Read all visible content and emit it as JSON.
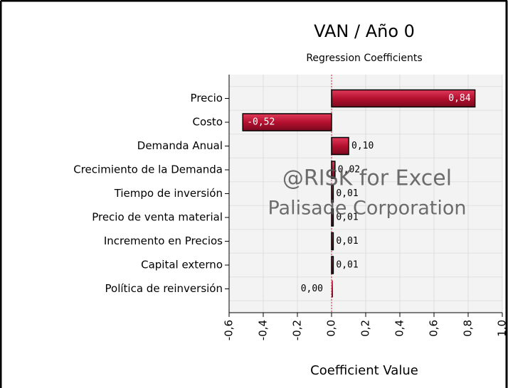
{
  "chart_data": {
    "type": "bar",
    "orientation": "horizontal",
    "title": "VAN / Año 0",
    "subtitle": "Regression Coefficients",
    "xlabel": "Coefficient Value",
    "watermark": [
      "@RISK for Excel",
      "Palisade Corporation"
    ],
    "categories": [
      "Precio",
      "Costo",
      "Demanda Anual",
      "Crecimiento de la Demanda",
      "Tiempo de inversión",
      "Precio de venta material",
      "Incremento en Precios",
      "Capital externo",
      "Política de reinversión"
    ],
    "values": [
      0.84,
      -0.52,
      0.1,
      0.02,
      0.01,
      0.01,
      0.01,
      0.01,
      0.0
    ],
    "value_labels": [
      "0,84",
      "-0,52",
      "0,10",
      "0,02",
      "0,01",
      "0,01",
      "0,01",
      "0,01",
      "0,00"
    ],
    "color": "#b5102f",
    "xlim": [
      -0.6,
      1.0
    ],
    "xticks": [
      {
        "value": -0.6,
        "label": "-0,6"
      },
      {
        "value": -0.4,
        "label": "-0,4"
      },
      {
        "value": -0.2,
        "label": "-0,2"
      },
      {
        "value": 0.0,
        "label": "0,0"
      },
      {
        "value": 0.2,
        "label": "0,2"
      },
      {
        "value": 0.4,
        "label": "0,4"
      },
      {
        "value": 0.6,
        "label": "0,6"
      },
      {
        "value": 0.8,
        "label": "0,8"
      },
      {
        "value": 1.0,
        "label": "1,0"
      }
    ],
    "grid": true
  }
}
